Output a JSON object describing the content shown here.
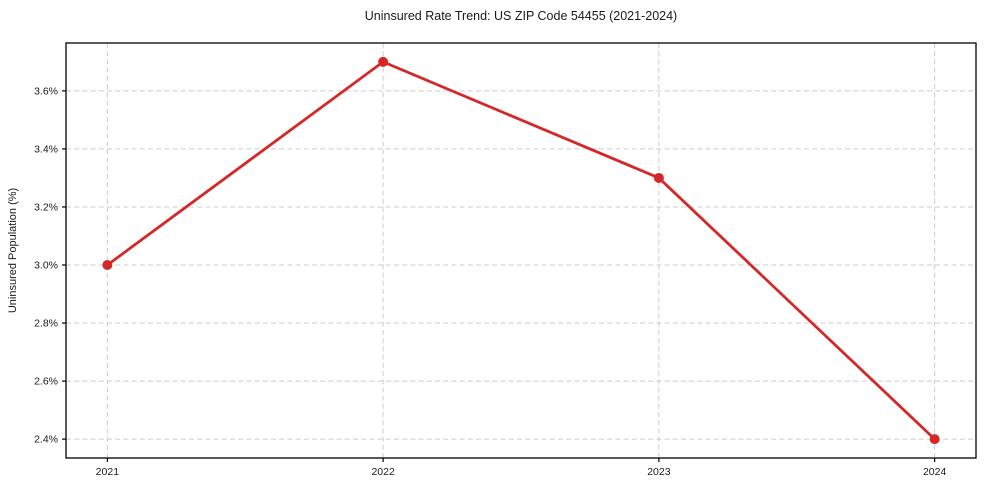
{
  "chart_data": {
    "type": "line",
    "title": "Uninsured Rate Trend: US ZIP Code 54455 (2021-2024)",
    "xlabel": "",
    "ylabel": "Uninsured Population (%)",
    "x": [
      2021,
      2022,
      2023,
      2024
    ],
    "values": [
      3.0,
      3.7,
      3.3,
      2.4
    ],
    "xtick_values": [
      2021,
      2022,
      2023,
      2024
    ],
    "xtick_labels": [
      "2021",
      "2022",
      "2023",
      "2024"
    ],
    "ytick_values": [
      2.4,
      2.6,
      2.8,
      3.0,
      3.2,
      3.4,
      3.6
    ],
    "ytick_labels": [
      "2.4%",
      "2.6%",
      "2.8%",
      "3.0%",
      "3.2%",
      "3.4%",
      "3.6%"
    ],
    "xlim": [
      2020.85,
      2024.15
    ],
    "ylim": [
      2.335,
      3.765
    ],
    "grid": true,
    "grid_style": "dashed",
    "legend_visible": false,
    "colors": {
      "line": "#d62728",
      "marker": "#d62728",
      "grid": "#cccccc",
      "spine": "#000000",
      "text": "#1a1a1a",
      "background": "#ffffff"
    }
  }
}
